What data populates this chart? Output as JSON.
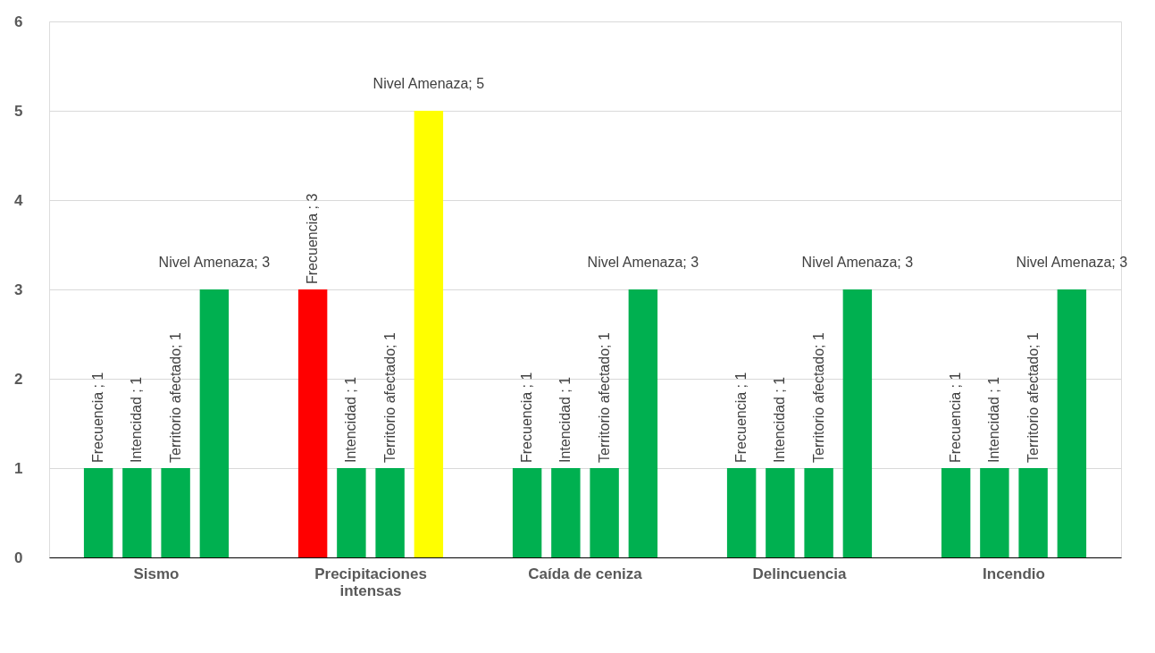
{
  "chart_data": {
    "type": "bar",
    "categories": [
      "Sismo",
      "Precipitaciones intensas",
      "Caída de ceniza",
      "Delincuencia",
      "Incendio"
    ],
    "series": [
      {
        "colors": [
          "#00b050",
          "#ff0000",
          "#00b050",
          "#00b050",
          "#00b050"
        ],
        "values": [
          1,
          3,
          1,
          1,
          1
        ],
        "value_labels": [
          "Frecuencia ; 1",
          "Frecuencia ; 3",
          "Frecuencia ; 1",
          "Frecuencia ; 1",
          "Frecuencia ; 1"
        ]
      },
      {
        "color": "#00b050",
        "values": [
          1,
          1,
          1,
          1,
          1
        ],
        "value_labels": [
          "Intencidad ; 1",
          "Intencidad ; 1",
          "Intencidad ; 1",
          "Intencidad ; 1",
          "Intencidad ; 1"
        ]
      },
      {
        "color": "#00b050",
        "values": [
          1,
          1,
          1,
          1,
          1
        ],
        "value_labels": [
          "Territorio afectado; 1",
          "Territorio afectado; 1",
          "Territorio afectado; 1",
          "Territorio afectado; 1",
          "Territorio afectado; 1"
        ]
      },
      {
        "colors": [
          "#00b050",
          "#ffff00",
          "#00b050",
          "#00b050",
          "#00b050"
        ],
        "values": [
          3,
          5,
          3,
          3,
          3
        ],
        "value_labels": [
          "Nivel Amenaza; 3",
          "Nivel Amenaza; 5",
          "Nivel Amenaza; 3",
          "Nivel Amenaza; 3",
          "Nivel Amenaza; 3"
        ]
      }
    ],
    "ylim": [
      0,
      6
    ],
    "yticks": [
      0,
      1,
      2,
      3,
      4,
      5,
      6
    ],
    "grid": "y"
  }
}
